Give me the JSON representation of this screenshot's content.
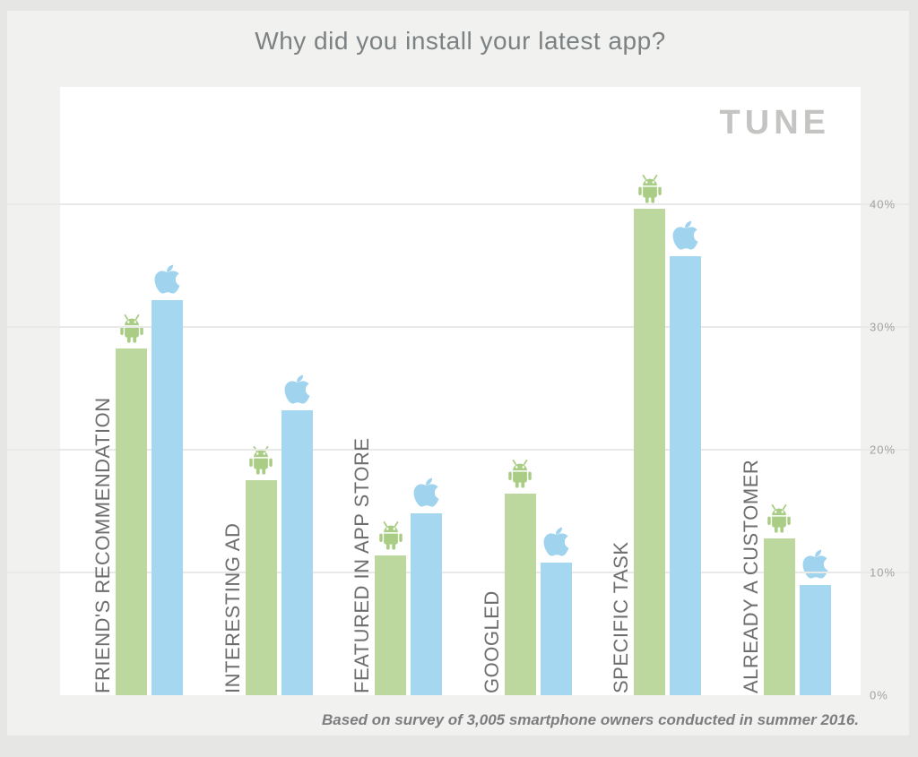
{
  "title": "Why did you install your latest app?",
  "logo": "TUNE",
  "footnote": "Based on survey of 3,005 smartphone owners conducted in summer 2016.",
  "colors": {
    "android_bar": "#bcd89e",
    "ios_bar": "#a6d7f0",
    "android_icon": "#a9cd84",
    "apple_icon": "#9fd3ee",
    "plot_background": "#ffffff",
    "panel_background": "#f1f1ef",
    "outer_background": "#e6e6e4",
    "gridline": "#e9e9e7",
    "title_text": "#7c8184",
    "category_text": "#6e6e71",
    "tick_text": "#a3a3a1",
    "logo_text": "#c4c4c2",
    "footnote_text": "#7d7d80"
  },
  "chart_data": {
    "type": "bar",
    "title": "Why did you install your latest app?",
    "categories": [
      "FRIEND'S RECOMMENDATION",
      "INTERESTING AD",
      "FEATURED IN APP STORE",
      "GOOGLED",
      "SPECIFIC TASK",
      "ALREADY A CUSTOMER"
    ],
    "series": [
      {
        "name": "Android",
        "icon": "android-robot",
        "values": [
          28.3,
          17.5,
          11.4,
          16.4,
          39.7,
          12.8
        ]
      },
      {
        "name": "iOS",
        "icon": "apple-logo",
        "values": [
          32.2,
          23.2,
          14.8,
          10.8,
          35.8,
          9.0
        ]
      }
    ],
    "unit": "%",
    "yticks": [
      0,
      10,
      20,
      30,
      40
    ],
    "ytick_labels": [
      "0%",
      "10%",
      "20%",
      "30%",
      "40%"
    ],
    "ylim": [
      0,
      49.6
    ],
    "grid": true,
    "legend": "platform icons shown above each bar",
    "ylabel": "",
    "xlabel": ""
  }
}
